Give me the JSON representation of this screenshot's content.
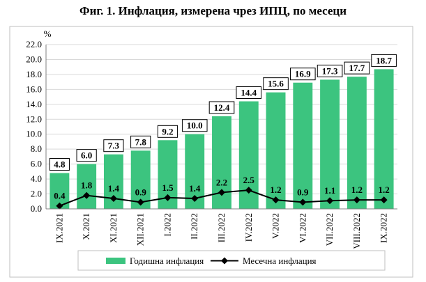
{
  "title": "Фиг. 1. Инфлация, измерена чрез ИПЦ, по месеци",
  "chart_data": {
    "type": "bar",
    "ylabel": "%",
    "ylim": [
      0,
      22
    ],
    "yticks": [
      "0.0",
      "2.0",
      "4.0",
      "6.0",
      "8.0",
      "10.0",
      "12.0",
      "14.0",
      "16.0",
      "18.0",
      "20.0",
      "22.0"
    ],
    "grid": true,
    "legend_position": "bottom",
    "categories": [
      "IX.2021",
      "X.2021",
      "XI.2021",
      "XII.2021",
      "I.2022",
      "II.2022",
      "III.2022",
      "IV.2022",
      "V.2022",
      "VI.2022",
      "VII.2022",
      "VIII.2022",
      "IX.2022"
    ],
    "series": [
      {
        "name": "Годишна инфлация",
        "type": "bar",
        "color": "#3cc47f",
        "values": [
          4.8,
          6.0,
          7.3,
          7.8,
          9.2,
          10.0,
          12.4,
          14.4,
          15.6,
          16.9,
          17.3,
          17.7,
          18.7
        ],
        "labels": [
          "4.8",
          "6.0",
          "7.3",
          "7.8",
          "9.2",
          "10.0",
          "12.4",
          "14.4",
          "15.6",
          "16.9",
          "17.3",
          "17.7",
          "18.7"
        ]
      },
      {
        "name": "Месечна инфлация",
        "type": "line",
        "color": "#000000",
        "values": [
          0.4,
          1.8,
          1.4,
          0.9,
          1.5,
          1.4,
          2.2,
          2.5,
          1.2,
          0.9,
          1.1,
          1.2,
          1.2
        ],
        "labels": [
          "0.4",
          "1.8",
          "1.4",
          "0.9",
          "1.5",
          "1.4",
          "2.2",
          "2.5",
          "1.2",
          "0.9",
          "1.1",
          "1.2",
          "1.2"
        ]
      }
    ]
  }
}
